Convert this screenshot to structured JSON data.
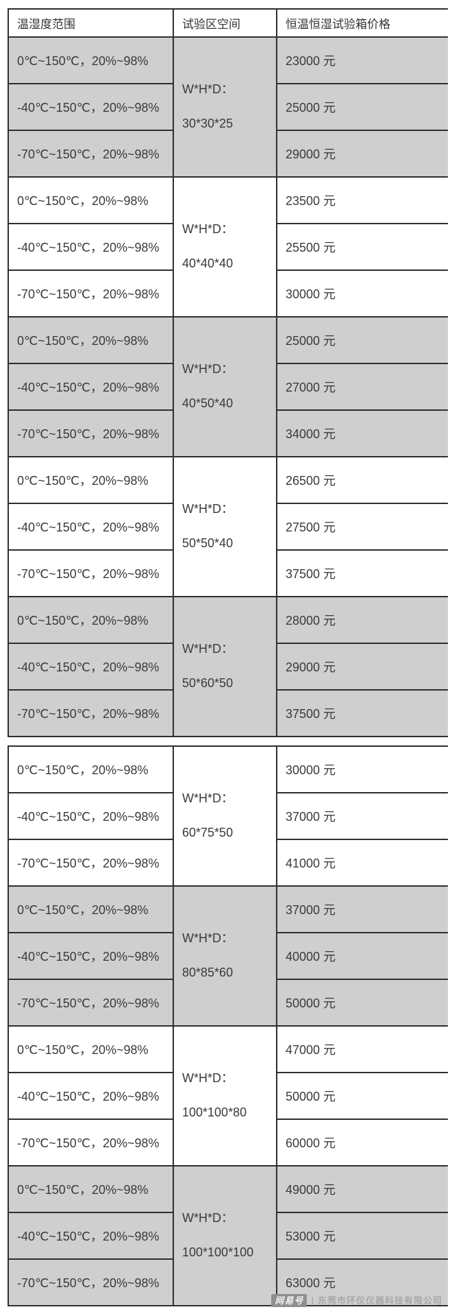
{
  "header": {
    "columns": [
      "温湿度范围",
      "试验区空间",
      "恒温恒湿试验箱价格"
    ]
  },
  "temperature_rows": [
    "0℃~150℃，20%~98%",
    "-40℃~150℃，20%~98%",
    "-70℃~150℃，20%~98%"
  ],
  "size_prefix": "W*H*D：",
  "tables": [
    {
      "groups": [
        {
          "size": "30*30*25",
          "prices": [
            "23000 元",
            "25000 元",
            "29000 元"
          ],
          "shaded": true
        },
        {
          "size": "40*40*40",
          "prices": [
            "23500 元",
            "25500 元",
            "30000 元"
          ],
          "shaded": false
        },
        {
          "size": "40*50*40",
          "prices": [
            "25000 元",
            "27000 元",
            "34000 元"
          ],
          "shaded": true
        },
        {
          "size": "50*50*40",
          "prices": [
            "26500 元",
            "27500 元",
            "37500 元"
          ],
          "shaded": false
        },
        {
          "size": "50*60*50",
          "prices": [
            "28000 元",
            "29000 元",
            "37500 元"
          ],
          "shaded": true
        }
      ]
    },
    {
      "groups": [
        {
          "size": "60*75*50",
          "prices": [
            "30000 元",
            "37000 元",
            "41000 元"
          ],
          "shaded": false
        },
        {
          "size": "80*85*60",
          "prices": [
            "37000 元",
            "40000 元",
            "50000 元"
          ],
          "shaded": true
        },
        {
          "size": "100*100*80",
          "prices": [
            "47000 元",
            "50000 元",
            "60000 元"
          ],
          "shaded": false
        },
        {
          "size": "100*100*100",
          "prices": [
            "49000 元",
            "53000 元",
            "63000 元"
          ],
          "shaded": true
        }
      ]
    }
  ],
  "watermark": {
    "badge": "网易号",
    "separator": "|",
    "company": "东莞市环仪仪器科技有限公司"
  },
  "colors": {
    "shaded_cell": "#cfcfcf",
    "border": "#2e2e2e",
    "text": "#3a3a3a",
    "watermark_badge_bg": "#8f8f8f",
    "watermark_text": "#a8a8a8"
  }
}
